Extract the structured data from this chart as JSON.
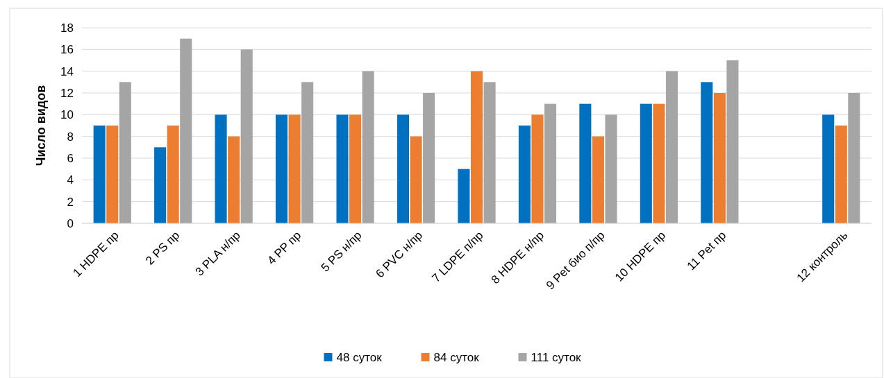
{
  "chart_data": {
    "type": "bar",
    "ylabel": "Число видов",
    "categories": [
      "1 HDPE пр",
      "2 PS пр",
      "3 PLA н/пр",
      "4 PP пр",
      "5 PS н/пр",
      "6 PVC н/пр",
      "7 LDPE п/пр",
      "8 HDPE н/пр",
      "9 Pet био п/пр",
      "10 HDPE пр",
      "11 Pet пр",
      null,
      "12 контроль"
    ],
    "series": [
      {
        "name": "48 суток",
        "color": "#0070c0",
        "values": [
          9,
          7,
          10,
          10,
          10,
          10,
          5,
          9,
          11,
          11,
          13,
          null,
          10
        ]
      },
      {
        "name": "84 суток",
        "color": "#ed7d31",
        "values": [
          9,
          9,
          8,
          10,
          10,
          8,
          14,
          10,
          8,
          11,
          12,
          null,
          9
        ]
      },
      {
        "name": "111 суток",
        "color": "#a5a5a5",
        "values": [
          13,
          17,
          16,
          13,
          14,
          12,
          13,
          11,
          10,
          14,
          15,
          null,
          12
        ]
      }
    ],
    "ylim": [
      0,
      18
    ],
    "yticks": [
      0,
      2,
      4,
      6,
      8,
      10,
      12,
      14,
      16,
      18
    ],
    "grid": "y",
    "legend": "bottom"
  }
}
